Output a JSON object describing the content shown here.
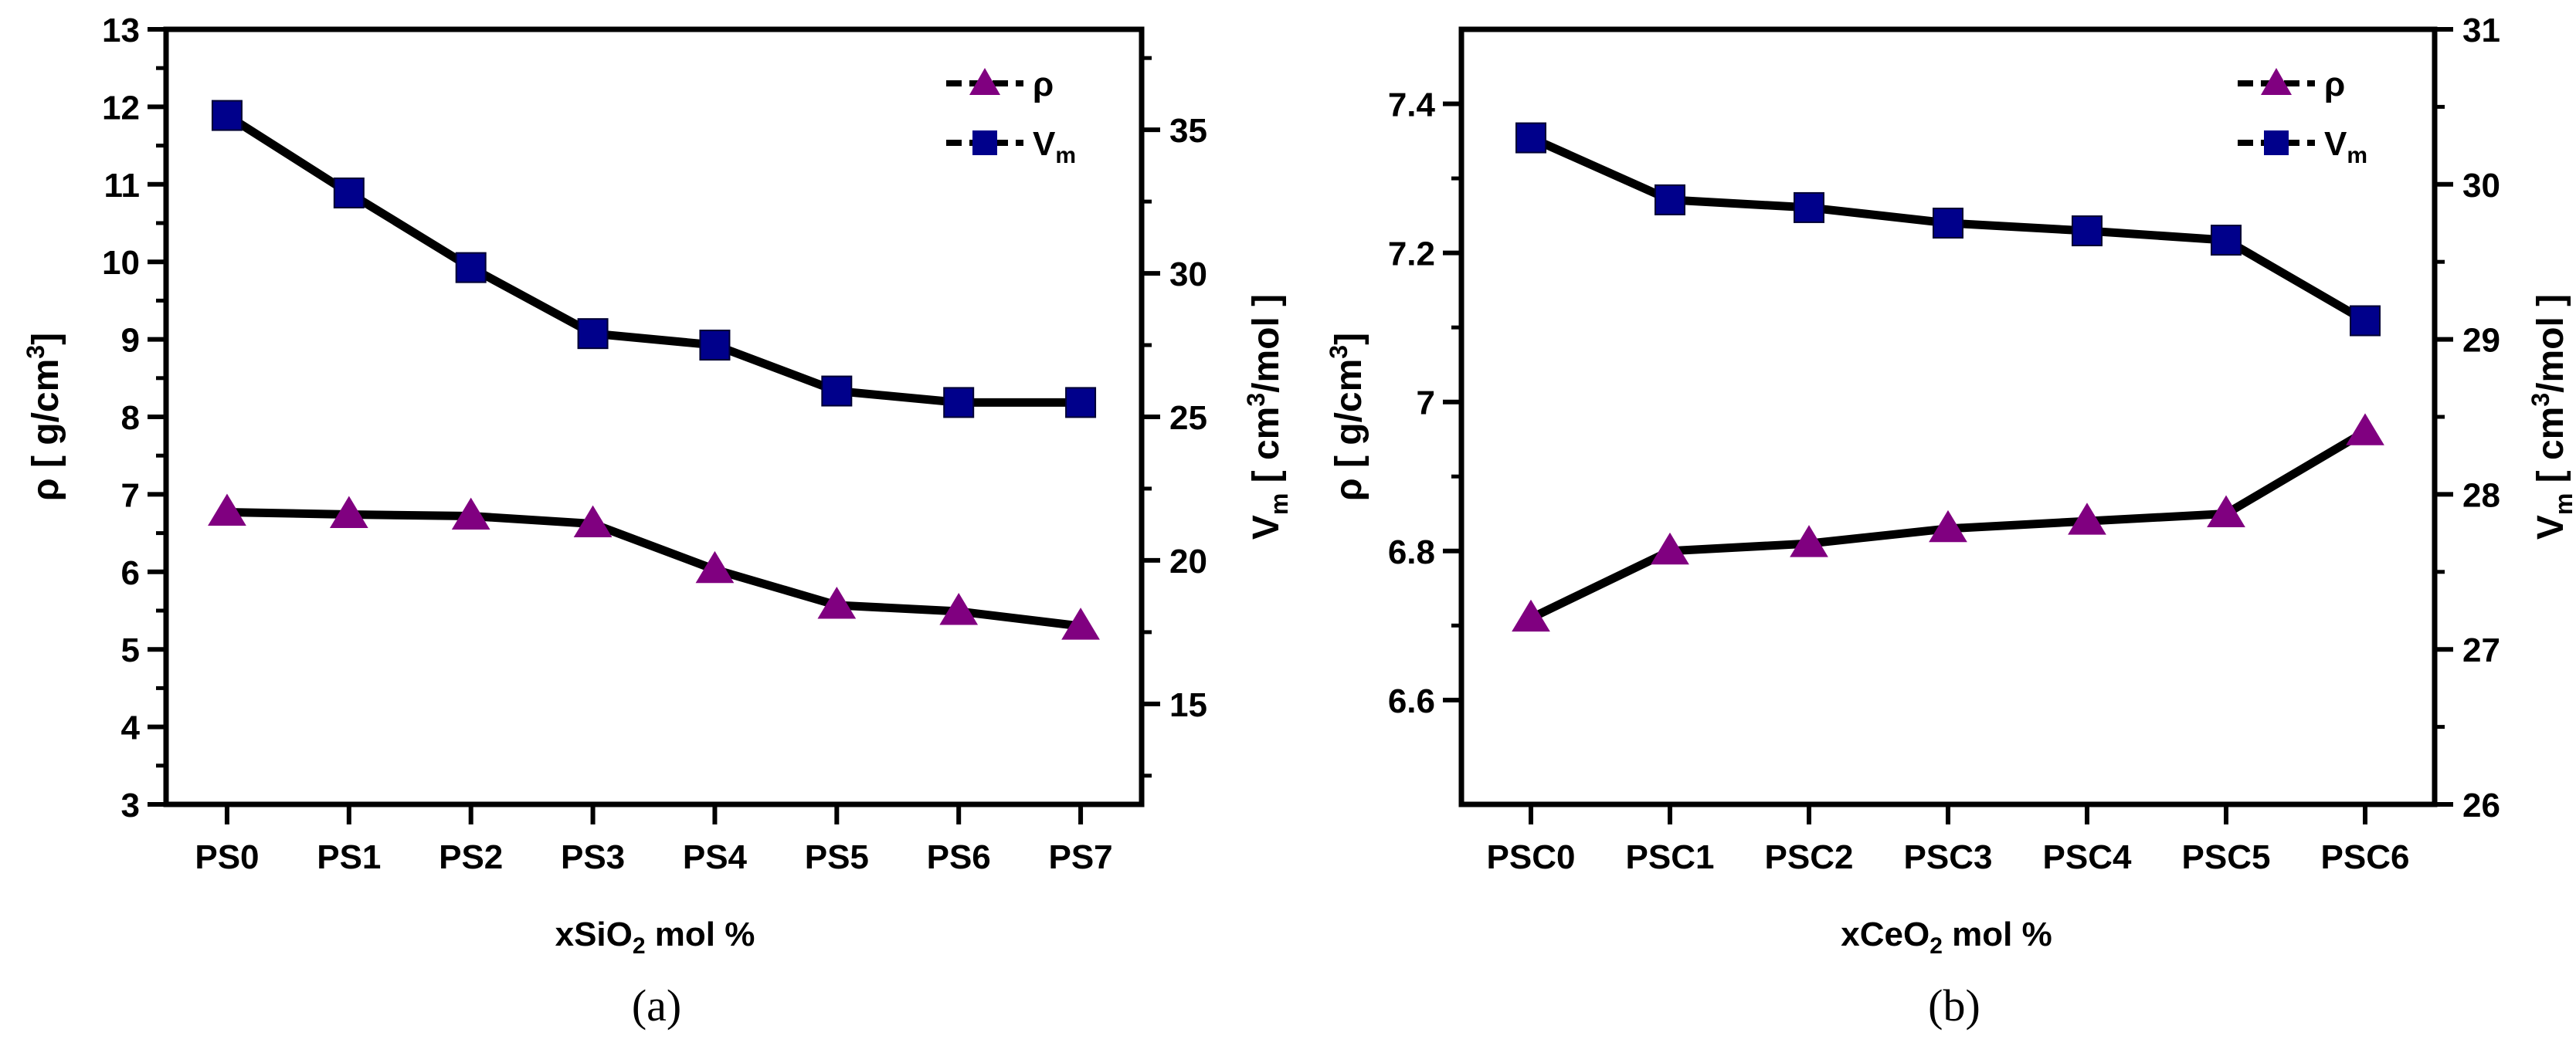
{
  "colors": {
    "rho": "#800080",
    "vm": "#00008b",
    "line": "#000000"
  },
  "chart_data": [
    {
      "type": "line",
      "panel_label": "(a)",
      "title": "",
      "xlabel": {
        "main": "xSiO",
        "sub": "2",
        "tail": "  mol %"
      },
      "ylabel_left": {
        "pre": "ρ [ g/cm",
        "sup": "3",
        "post": "]"
      },
      "ylabel_right": {
        "main": "V",
        "sub": "m",
        "mid": " [ cm",
        "sup": "3",
        "post": "/mol ]"
      },
      "categories": [
        "PS0",
        "PS1",
        "PS2",
        "PS3",
        "PS4",
        "PS5",
        "PS6",
        "PS7"
      ],
      "ylim_left": [
        3,
        13
      ],
      "yticks_left": [
        3,
        4,
        5,
        6,
        7,
        8,
        9,
        10,
        11,
        12,
        13
      ],
      "ylim_right": [
        11.5,
        38.5
      ],
      "yticks_right": [
        15,
        20,
        25,
        30,
        35
      ],
      "legend_position": "top-right",
      "legend": [
        {
          "label": "ρ",
          "sub": ""
        },
        {
          "label": "V",
          "sub": "m"
        }
      ],
      "series": [
        {
          "key": "rho",
          "axis": "left",
          "marker": "triangle",
          "values": [
            6.77,
            6.74,
            6.72,
            6.62,
            6.03,
            5.57,
            5.49,
            5.3
          ]
        },
        {
          "key": "vm",
          "axis": "right",
          "marker": "square",
          "values": [
            35.5,
            32.8,
            30.2,
            27.9,
            27.5,
            25.9,
            25.5,
            25.5
          ]
        }
      ],
      "grid": false
    },
    {
      "type": "line",
      "panel_label": "(b)",
      "title": "",
      "xlabel": {
        "main": "xCeO",
        "sub": "2",
        "tail": " mol %"
      },
      "ylabel_left": {
        "pre": "ρ [ g/cm",
        "sup": "3",
        "post": "]"
      },
      "ylabel_right": {
        "main": "V",
        "sub": "m",
        "mid": " [ cm",
        "sup": "3",
        "post": "/mol ]"
      },
      "categories": [
        "PSC0",
        "PSC1",
        "PSC2",
        "PSC3",
        "PSC4",
        "PSC5",
        "PSC6"
      ],
      "ylim_left": [
        6.46,
        7.5
      ],
      "yticks_left": [
        6.6,
        6.8,
        7.0,
        7.2,
        7.4
      ],
      "ylim_right": [
        26,
        31
      ],
      "yticks_right": [
        26,
        27,
        28,
        29,
        30,
        31
      ],
      "legend_position": "top-right",
      "legend": [
        {
          "label": "ρ",
          "sub": ""
        },
        {
          "label": "V",
          "sub": "m"
        }
      ],
      "series": [
        {
          "key": "rho",
          "axis": "left",
          "marker": "triangle",
          "values": [
            6.71,
            6.8,
            6.81,
            6.83,
            6.84,
            6.85,
            6.96
          ]
        },
        {
          "key": "vm",
          "axis": "right",
          "marker": "square",
          "values": [
            30.3,
            29.9,
            29.85,
            29.75,
            29.7,
            29.64,
            29.12
          ]
        }
      ],
      "grid": false
    }
  ]
}
